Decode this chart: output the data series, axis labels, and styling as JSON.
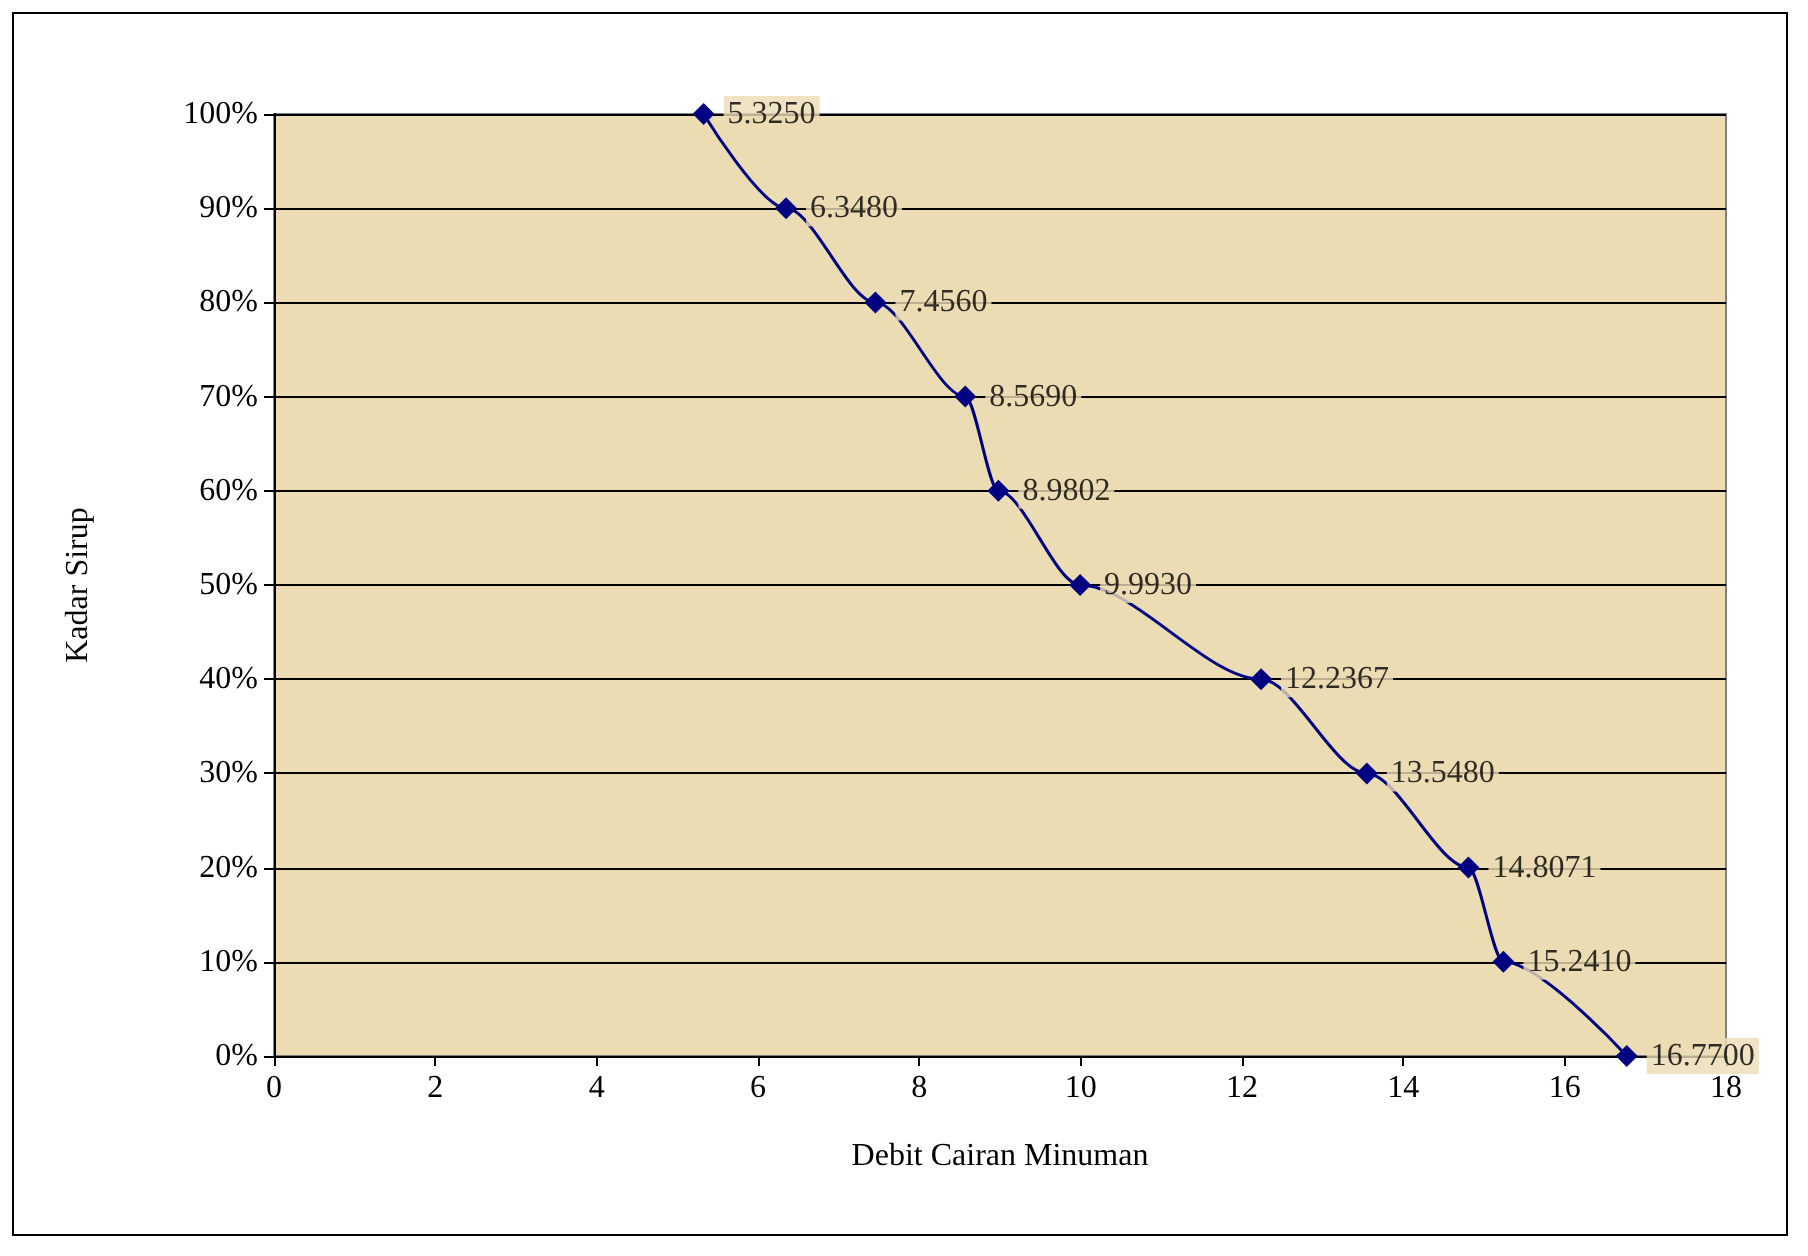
{
  "chart_data": {
    "type": "line",
    "xlabel": "Debit Cairan Minuman",
    "ylabel": "Kadar Sirup",
    "series": [
      {
        "color": "#000080",
        "x": [
          5.325,
          6.348,
          7.456,
          8.569,
          8.9802,
          9.993,
          12.2367,
          13.548,
          14.8071,
          15.241,
          16.77
        ],
        "values": [
          100,
          90,
          80,
          70,
          60,
          50,
          40,
          30,
          20,
          10,
          0
        ]
      }
    ],
    "annotations": [
      {
        "text": "5.3250",
        "x": 5.325,
        "y": 100
      },
      {
        "text": "6.3480",
        "x": 6.348,
        "y": 90
      },
      {
        "text": "7.4560",
        "x": 7.456,
        "y": 80
      },
      {
        "text": "8.5690",
        "x": 8.569,
        "y": 70
      },
      {
        "text": "8.9802",
        "x": 8.9802,
        "y": 60
      },
      {
        "text": "9.9930",
        "x": 9.993,
        "y": 50
      },
      {
        "text": "12.2367",
        "x": 12.2367,
        "y": 40
      },
      {
        "text": "13.5480",
        "x": 13.548,
        "y": 30
      },
      {
        "text": "14.8071",
        "x": 14.8071,
        "y": 20
      },
      {
        "text": "15.2410",
        "x": 15.241,
        "y": 10
      },
      {
        "text": "16.7700",
        "x": 16.77,
        "y": 0
      }
    ],
    "xlim": [
      0,
      18
    ],
    "xticks": [
      0,
      2,
      4,
      6,
      8,
      10,
      12,
      14,
      16,
      18
    ],
    "ylim": [
      0,
      100
    ],
    "yticks": [
      {
        "value": 0,
        "label": "0%"
      },
      {
        "value": 10,
        "label": "10%"
      },
      {
        "value": 20,
        "label": "20%"
      },
      {
        "value": 30,
        "label": "30%"
      },
      {
        "value": 40,
        "label": "40%"
      },
      {
        "value": 50,
        "label": "50%"
      },
      {
        "value": 60,
        "label": "60%"
      },
      {
        "value": 70,
        "label": "70%"
      },
      {
        "value": 80,
        "label": "80%"
      },
      {
        "value": 90,
        "label": "90%"
      },
      {
        "value": 100,
        "label": "100%"
      }
    ],
    "grid": "y",
    "marker": "diamond",
    "line_style": "solid"
  }
}
